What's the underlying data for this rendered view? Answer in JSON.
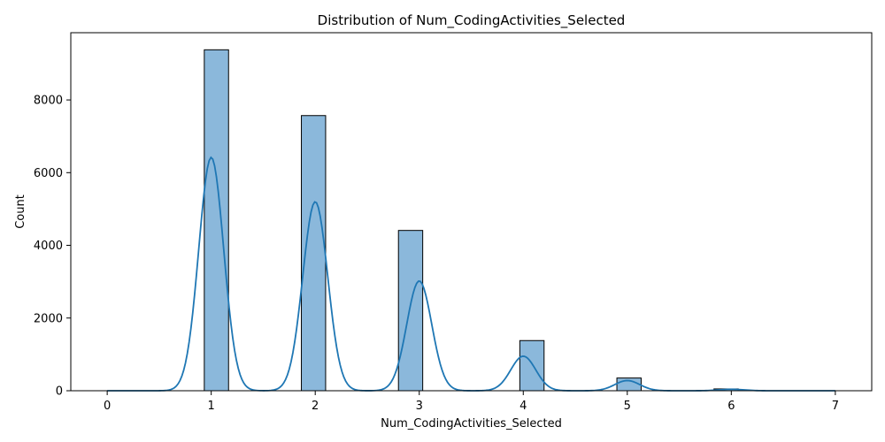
{
  "chart_data": {
    "type": "bar",
    "title": "Distribution of Num_CodingActivities_Selected",
    "xlabel": "Num_CodingActivities_Selected",
    "ylabel": "Count",
    "xlim": [
      -0.35,
      7.35
    ],
    "ylim": [
      0,
      9850
    ],
    "xticks": [
      0,
      1,
      2,
      3,
      4,
      5,
      6,
      7
    ],
    "yticks": [
      0,
      2000,
      4000,
      6000,
      8000
    ],
    "grid": false,
    "bar_color": "#8bb8db",
    "bar_edge_color": "#000000",
    "kde_color": "#1f77b4",
    "bins": [
      {
        "x0": 0.9333,
        "x1": 1.1667,
        "count": 9380
      },
      {
        "x0": 1.8667,
        "x1": 2.1,
        "count": 7570
      },
      {
        "x0": 2.8,
        "x1": 3.0333,
        "count": 4410
      },
      {
        "x0": 3.9667,
        "x1": 4.2,
        "count": 1380
      },
      {
        "x0": 4.9,
        "x1": 5.1333,
        "count": 350
      },
      {
        "x0": 5.8333,
        "x1": 6.0667,
        "count": 50
      }
    ],
    "kde": {
      "name": "KDE",
      "peaks": [
        {
          "x": 1,
          "y": 6420
        },
        {
          "x": 2,
          "y": 5200
        },
        {
          "x": 3,
          "y": 3020
        },
        {
          "x": 4,
          "y": 950
        },
        {
          "x": 5,
          "y": 280
        },
        {
          "x": 6,
          "y": 40
        }
      ],
      "bandwidth": 0.12
    }
  }
}
